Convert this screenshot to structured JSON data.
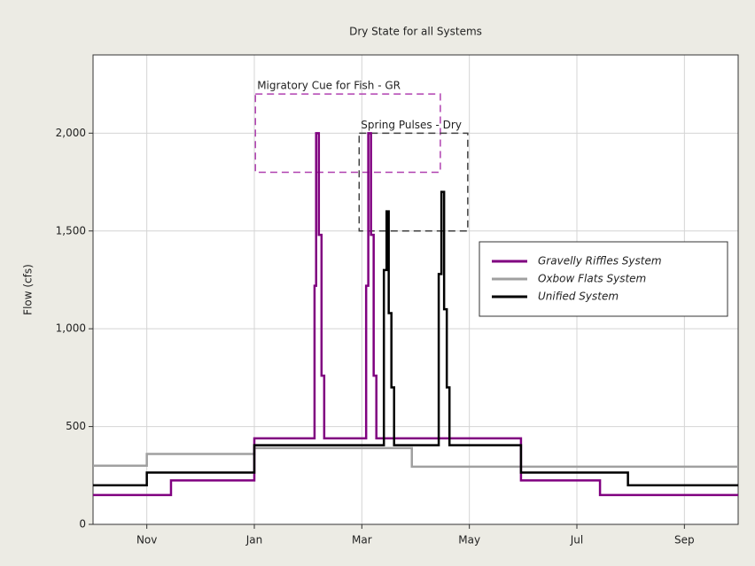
{
  "chart_data": {
    "type": "step",
    "title": "Dry State for all Systems",
    "ylabel": "Flow (cfs)",
    "xlim": [
      0,
      12
    ],
    "xticks": [
      {
        "value": 1,
        "label": "Nov"
      },
      {
        "value": 3,
        "label": "Jan"
      },
      {
        "value": 5,
        "label": "Mar"
      },
      {
        "value": 7,
        "label": "May"
      },
      {
        "value": 9,
        "label": "Jul"
      },
      {
        "value": 11,
        "label": "Sep"
      }
    ],
    "ylim": [
      0,
      2400
    ],
    "yticks": [
      0,
      500,
      {
        "value": 1000,
        "label": "1,000"
      },
      {
        "value": 1500,
        "label": "1,500"
      },
      {
        "value": 2000,
        "label": "2,000"
      }
    ],
    "grid": true,
    "legend_position": "right",
    "series": [
      {
        "name": "Gravelly Riffles System",
        "color": "#800080",
        "x": [
          0,
          1.45,
          3,
          4.12,
          4.15,
          4.2,
          4.25,
          4.3,
          5.08,
          5.12,
          5.17,
          5.22,
          5.27,
          7.96,
          9.43,
          12
        ],
        "values": [
          150,
          225,
          440,
          1220,
          2000,
          1480,
          760,
          440,
          1220,
          2000,
          1480,
          760,
          440,
          225,
          150,
          150
        ]
      },
      {
        "name": "Oxbow Flats System",
        "color": "#a0a0a0",
        "x": [
          0,
          1,
          3,
          5.93,
          12
        ],
        "values": [
          300,
          360,
          390,
          295,
          295
        ]
      },
      {
        "name": "Unified System",
        "color": "#000000",
        "x": [
          0,
          1,
          3,
          5.41,
          5.46,
          5.5,
          5.55,
          5.6,
          6.43,
          6.48,
          6.53,
          6.58,
          6.63,
          7.96,
          9.95,
          12
        ],
        "values": [
          200,
          265,
          405,
          1300,
          1600,
          1080,
          700,
          405,
          1280,
          1700,
          1100,
          700,
          405,
          265,
          200,
          200
        ]
      }
    ],
    "annotations": [
      {
        "text": "Migratory Cue for Fish - GR",
        "color": "#b040b0",
        "x": [
          3.02,
          6.46
        ],
        "y": [
          1800,
          2200
        ]
      },
      {
        "text": "Spring Pulses - Dry",
        "color": "#404040",
        "x": [
          4.95,
          6.97
        ],
        "y": [
          1500,
          2000
        ]
      }
    ]
  }
}
